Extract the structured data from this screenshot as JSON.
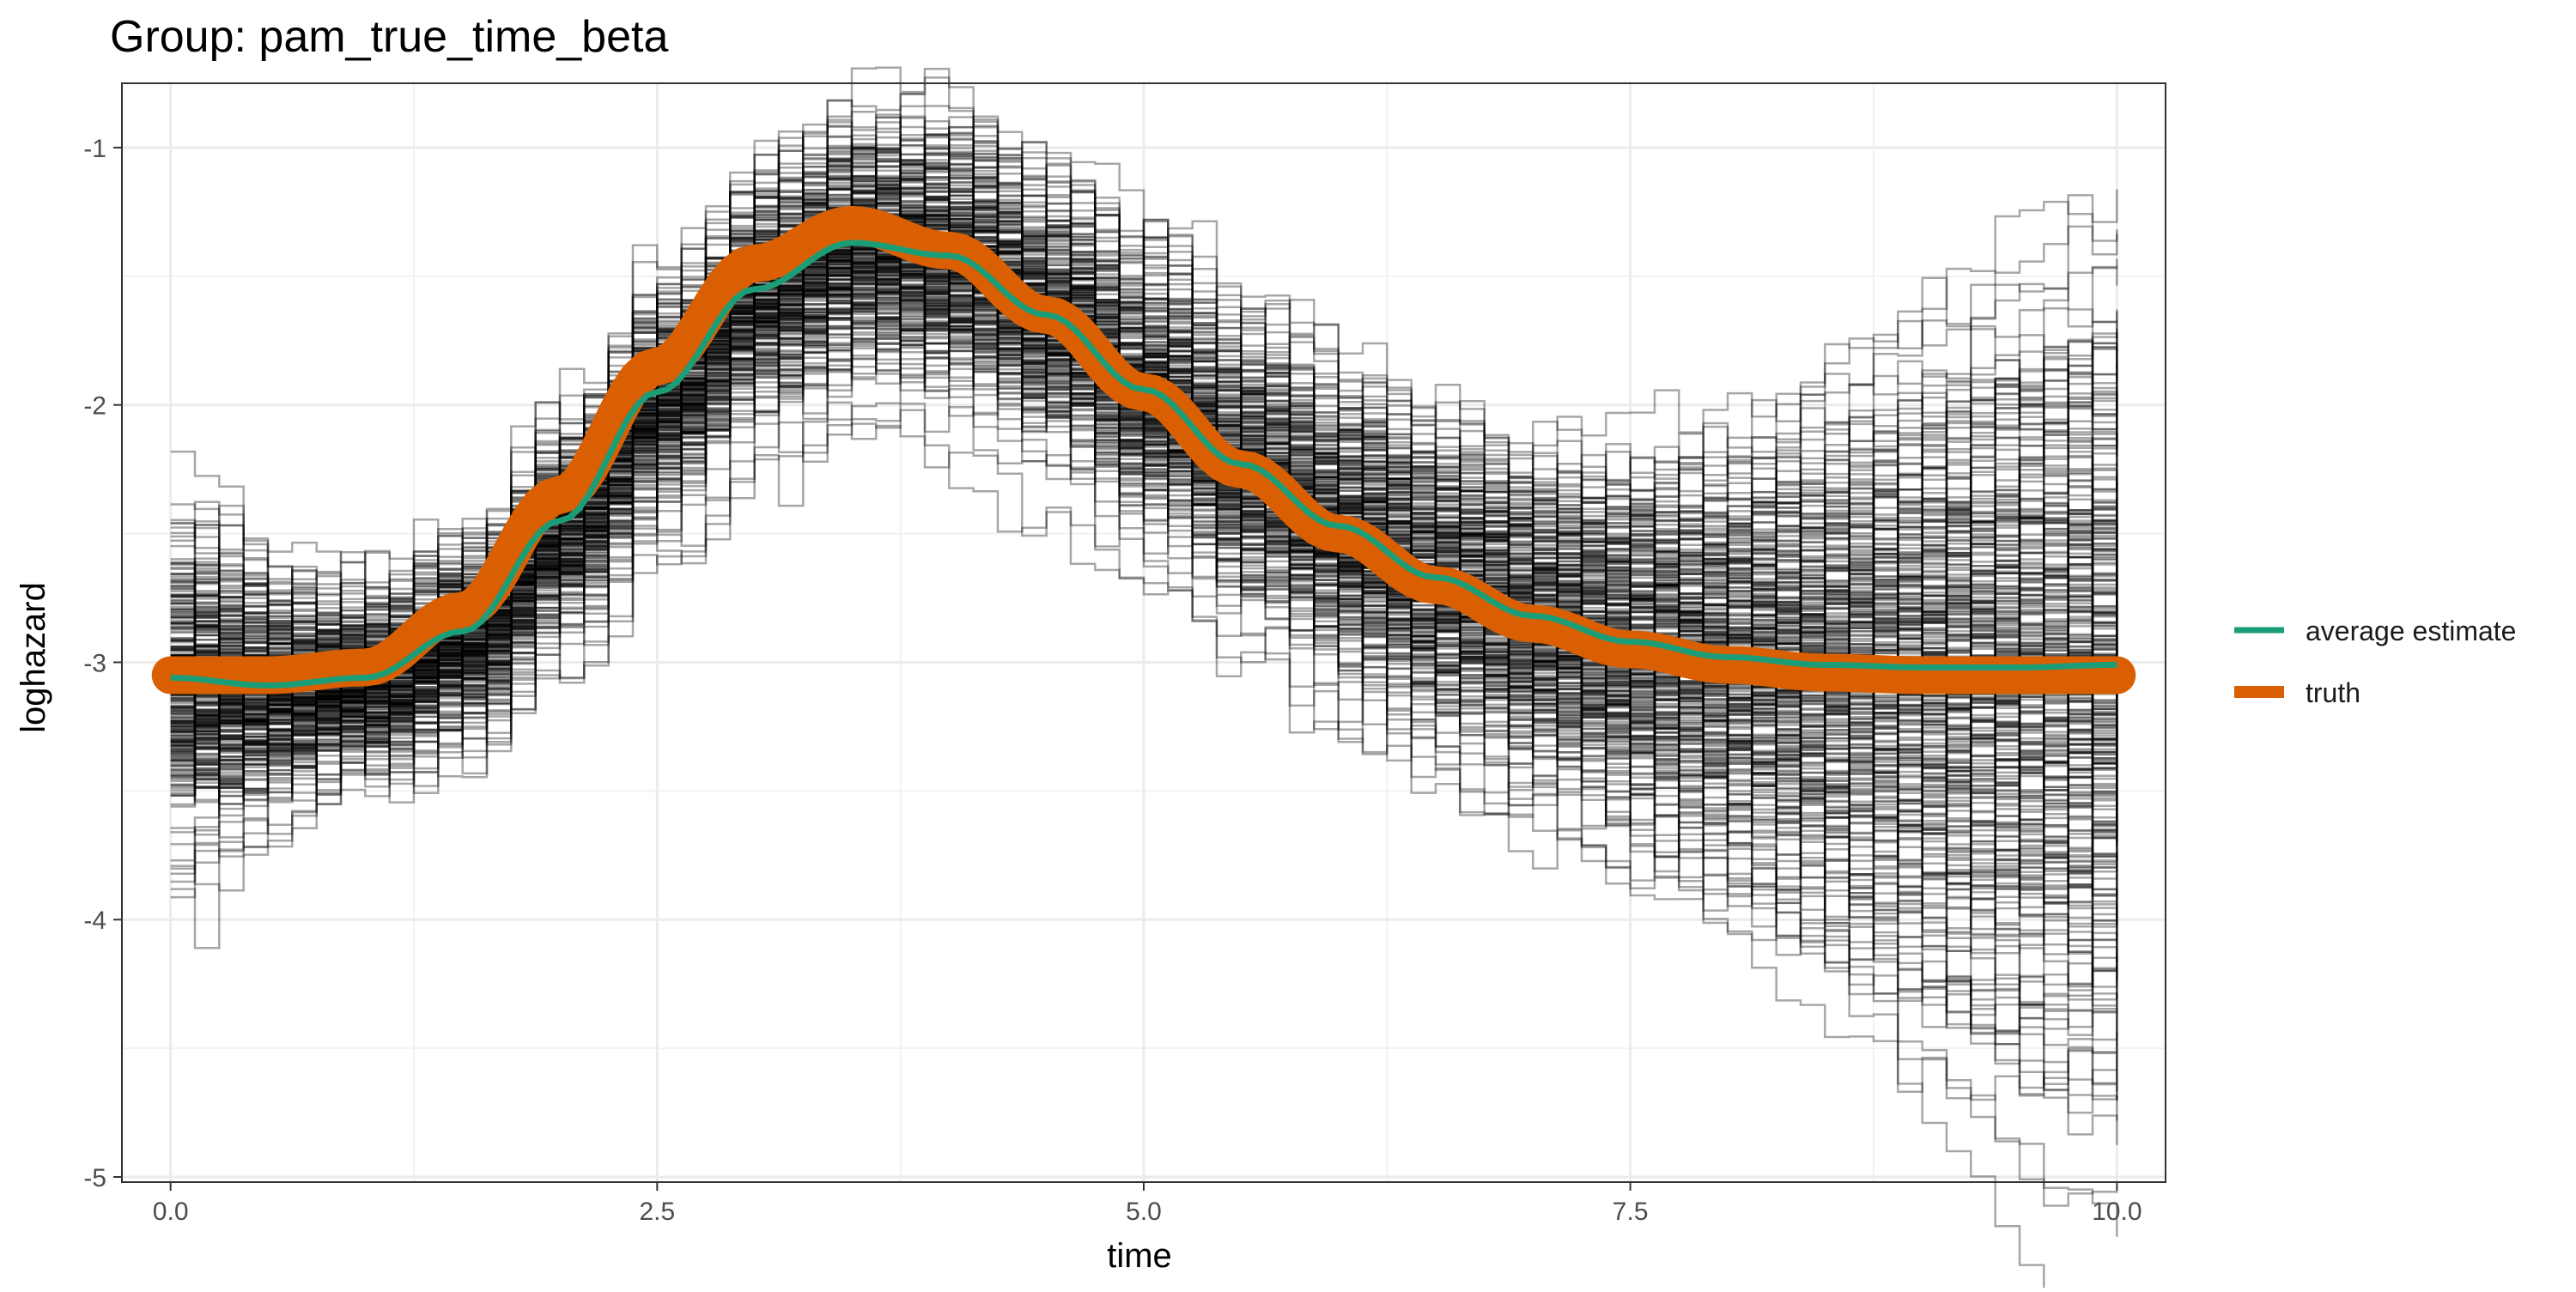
{
  "chart_data": {
    "type": "line",
    "title": "Group: pam_true_time_beta",
    "xlabel": "time",
    "ylabel": "loghazard",
    "xlim": [
      -0.25,
      10.25
    ],
    "ylim": [
      -5.02,
      -0.75
    ],
    "x_ticks": [
      0.0,
      2.5,
      5.0,
      7.5,
      10.0
    ],
    "x_tick_labels": [
      "0.0",
      "2.5",
      "5.0",
      "7.5",
      "10.0"
    ],
    "y_ticks": [
      -5,
      -4,
      -3,
      -2,
      -1
    ],
    "y_tick_labels": [
      "-5",
      "-4",
      "-3",
      "-2",
      "-1"
    ],
    "grid": true,
    "legend_position": "right",
    "legend": [
      {
        "label": "average estimate",
        "color": "#1B9E77"
      },
      {
        "label": "truth",
        "color": "#D95F02"
      }
    ],
    "series": [
      {
        "name": "truth",
        "color": "#D95F02",
        "x": [
          0.0,
          0.5,
          1.0,
          1.5,
          2.0,
          2.5,
          3.0,
          3.5,
          4.0,
          4.5,
          5.0,
          5.5,
          6.0,
          6.5,
          7.0,
          7.5,
          8.0,
          8.5,
          9.0,
          9.5,
          10.0
        ],
        "y": [
          -3.05,
          -3.05,
          -3.02,
          -2.8,
          -2.35,
          -1.85,
          -1.45,
          -1.3,
          -1.4,
          -1.65,
          -1.95,
          -2.25,
          -2.5,
          -2.7,
          -2.85,
          -2.95,
          -3.01,
          -3.04,
          -3.05,
          -3.05,
          -3.05
        ]
      },
      {
        "name": "average estimate",
        "color": "#1B9E77",
        "x": [
          0.0,
          0.5,
          1.0,
          1.5,
          2.0,
          2.5,
          3.0,
          3.5,
          4.0,
          4.5,
          5.0,
          5.5,
          6.0,
          6.5,
          7.0,
          7.5,
          8.0,
          8.5,
          9.0,
          9.5,
          10.0
        ],
        "y": [
          -3.06,
          -3.09,
          -3.06,
          -2.88,
          -2.45,
          -1.95,
          -1.55,
          -1.37,
          -1.42,
          -1.65,
          -1.94,
          -2.23,
          -2.47,
          -2.67,
          -2.82,
          -2.92,
          -2.98,
          -3.01,
          -3.02,
          -3.02,
          -3.01
        ]
      }
    ],
    "replicates": {
      "color": "#000000",
      "count": 300,
      "steps": 80
    }
  }
}
